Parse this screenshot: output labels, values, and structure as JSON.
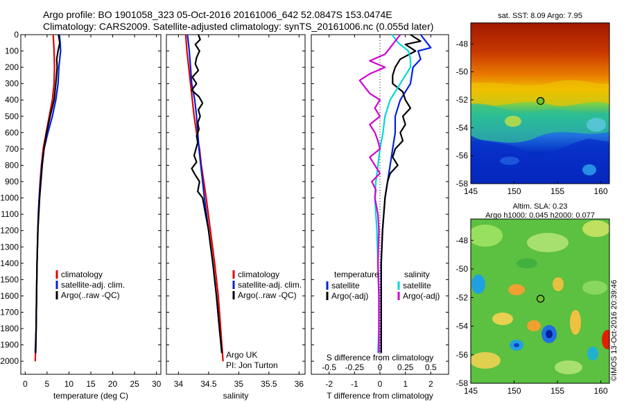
{
  "header": {
    "line1": "Argo profile: BO 1901058_323 05-Oct-2016 20161006_642 52.0847S 153.0474E",
    "line2": "Climatology: CARS2009. Satellite-adjusted climatology: synTS_20161006.nc (0.055d later)"
  },
  "colors": {
    "climatology": "#e00000",
    "satellite": "#0020d8",
    "argo": "#000000",
    "sat_diff_t": "#0020d8",
    "argo_diff_t": "#000000",
    "sat_diff_s": "#00d8d8",
    "argo_diff_s": "#d000d0"
  },
  "chart_data": [
    {
      "type": "line",
      "id": "temperature",
      "xlabel": "temperature (deg C)",
      "xlim": [
        -1,
        31
      ],
      "xticks": [
        0,
        5,
        10,
        15,
        20,
        25,
        30
      ],
      "ylim": [
        0,
        2080
      ],
      "yticks": [
        0,
        100,
        200,
        300,
        400,
        500,
        600,
        700,
        800,
        900,
        1000,
        1100,
        1200,
        1300,
        1400,
        1500,
        1600,
        1700,
        1800,
        1900,
        2000
      ],
      "legend": [
        "climatology",
        "satellite-adj. clim.",
        "Argo(..raw -QC)"
      ],
      "series": [
        {
          "name": "climatology",
          "color": "climatology",
          "depth": [
            0,
            100,
            200,
            300,
            400,
            500,
            600,
            700,
            800,
            900,
            1000,
            1100,
            1200,
            1400,
            1600,
            1800,
            2000
          ],
          "values": [
            6.4,
            6.6,
            6.7,
            6.6,
            6.2,
            5.5,
            4.8,
            4.1,
            3.7,
            3.4,
            3.2,
            3.0,
            2.9,
            2.7,
            2.6,
            2.5,
            2.3
          ]
        },
        {
          "name": "satellite-adj. clim.",
          "color": "satellite",
          "depth": [
            0,
            50,
            100,
            200,
            300,
            400,
            500,
            600,
            700,
            800,
            900,
            1000,
            1100,
            1200,
            1400,
            1600,
            1800,
            1950
          ],
          "values": [
            7.8,
            8.0,
            8.1,
            7.7,
            7.5,
            7.0,
            6.2,
            5.2,
            4.3,
            3.8,
            3.5,
            3.2,
            3.0,
            2.9,
            2.7,
            2.6,
            2.5,
            2.3
          ]
        },
        {
          "name": "Argo(..raw -QC)",
          "color": "argo",
          "depth": [
            0,
            50,
            100,
            150,
            200,
            300,
            400,
            500,
            600,
            700,
            800,
            900,
            1000,
            1100,
            1200,
            1400,
            1600,
            1800,
            1950
          ],
          "values": [
            7.6,
            7.9,
            7.5,
            7.2,
            7.3,
            7.0,
            6.6,
            5.7,
            4.9,
            4.3,
            3.9,
            3.6,
            3.3,
            3.1,
            2.9,
            2.7,
            2.6,
            2.5,
            2.4
          ]
        }
      ]
    },
    {
      "type": "line",
      "id": "salinity",
      "xlabel": "salinity",
      "xlim": [
        33.8,
        36.1
      ],
      "xticks": [
        34,
        34.5,
        35,
        35.5,
        36
      ],
      "xticklabels": [
        "34",
        "34.5",
        "35",
        "35.5",
        "36"
      ],
      "ylim": [
        0,
        2080
      ],
      "legend": [
        "climatology",
        "satellite-adj. clim.",
        "Argo(..raw -QC)"
      ],
      "annotations": [
        "Argo UK",
        "PI: Jon Turton"
      ],
      "series": [
        {
          "name": "climatology",
          "color": "climatology",
          "depth": [
            0,
            100,
            200,
            300,
            400,
            500,
            600,
            700,
            800,
            900,
            1000,
            1200,
            1400,
            1600,
            1800,
            2000
          ],
          "values": [
            34.12,
            34.14,
            34.17,
            34.2,
            34.23,
            34.26,
            34.3,
            34.35,
            34.38,
            34.42,
            34.46,
            34.53,
            34.6,
            34.66,
            34.7,
            34.74
          ]
        },
        {
          "name": "satellite-adj. clim.",
          "color": "satellite",
          "depth": [
            0,
            100,
            200,
            300,
            400,
            500,
            600,
            700,
            800,
            900,
            1000,
            1200,
            1400,
            1600,
            1800,
            1950
          ],
          "values": [
            34.15,
            34.18,
            34.2,
            34.22,
            34.27,
            34.3,
            34.32,
            34.34,
            34.37,
            34.4,
            34.43,
            34.5,
            34.57,
            34.63,
            34.68,
            34.72
          ]
        },
        {
          "name": "Argo(..raw -QC)",
          "color": "argo",
          "depth": [
            0,
            30,
            60,
            100,
            140,
            180,
            220,
            260,
            300,
            340,
            380,
            420,
            460,
            500,
            540,
            580,
            620,
            660,
            700,
            740,
            780,
            820,
            860,
            900,
            960,
            1000,
            1100,
            1200,
            1400,
            1600,
            1800,
            1950
          ],
          "values": [
            34.33,
            34.36,
            34.28,
            34.35,
            34.3,
            34.28,
            34.33,
            34.23,
            34.3,
            34.22,
            34.34,
            34.4,
            34.33,
            34.36,
            34.32,
            34.34,
            34.3,
            34.32,
            34.29,
            34.26,
            34.3,
            34.22,
            34.28,
            34.35,
            34.32,
            34.4,
            34.45,
            34.5,
            34.57,
            34.63,
            34.68,
            34.72
          ]
        }
      ]
    },
    {
      "type": "line",
      "id": "differences",
      "xlabel": "T difference from climatology",
      "xlim": [
        -2.7,
        2.7
      ],
      "xticks": [
        -2,
        -1,
        0,
        1,
        2
      ],
      "xticklabels": [
        "-2",
        "-1",
        "0",
        "1",
        "2"
      ],
      "top_xlabel": "S difference from climatology",
      "top_xticks": [
        -0.5,
        -0.25,
        0,
        0.25,
        0.5
      ],
      "top_xticklabels": [
        "-0.5",
        "-0.25",
        "0",
        "0.25",
        "0.5"
      ],
      "ylim": [
        0,
        2080
      ],
      "legend_groups": [
        {
          "title": "temperature",
          "items": [
            "satellite",
            "Argo(-adj)"
          ]
        },
        {
          "title": "salinity",
          "items": [
            "satellite",
            "Argo(-adj)"
          ]
        }
      ],
      "series": [
        {
          "name": "satellite",
          "variable": "temperature",
          "color": "sat_diff_t",
          "depth": [
            0,
            40,
            80,
            100,
            150,
            200,
            300,
            400,
            500,
            600,
            700,
            800,
            900,
            1000,
            1200,
            1400,
            1600,
            1800,
            1950
          ],
          "values": [
            1.6,
            1.8,
            2.0,
            1.5,
            1.6,
            1.3,
            1.2,
            0.8,
            0.6,
            0.6,
            0.5,
            0.4,
            0.3,
            0.2,
            0.1,
            0.05,
            0.05,
            0.05,
            0.05
          ]
        },
        {
          "name": "Argo(-adj)",
          "variable": "temperature",
          "color": "argo_diff_t",
          "depth": [
            0,
            40,
            60,
            100,
            150,
            200,
            250,
            300,
            350,
            400,
            450,
            500,
            550,
            600,
            650,
            700,
            750,
            800,
            850,
            900,
            1000,
            1100,
            1200,
            1400,
            1600,
            1800,
            1950
          ],
          "values": [
            1.2,
            1.6,
            1.0,
            1.4,
            0.8,
            0.6,
            0.5,
            0.5,
            0.9,
            1.0,
            1.2,
            0.9,
            1.0,
            0.8,
            0.9,
            0.6,
            0.5,
            0.7,
            0.4,
            0.3,
            0.2,
            0.15,
            0.1,
            0.05,
            0.05,
            0.05,
            0.05
          ]
        },
        {
          "name": "satellite",
          "variable": "salinity",
          "color": "sat_diff_s",
          "depth": [
            0,
            50,
            100,
            150,
            200,
            300,
            400,
            500,
            600,
            700,
            800,
            900,
            1000,
            1100,
            1200,
            1400,
            1600,
            1800,
            1950
          ],
          "values": [
            0.12,
            0.18,
            0.28,
            0.3,
            0.3,
            0.2,
            0.1,
            0.05,
            0.03,
            0.0,
            -0.02,
            -0.04,
            -0.05,
            -0.04,
            -0.03,
            -0.02,
            -0.01,
            -0.01,
            -0.02
          ]
        },
        {
          "name": "Argo(-adj)",
          "variable": "salinity",
          "color": "argo_diff_s",
          "depth": [
            0,
            40,
            80,
            120,
            160,
            200,
            240,
            280,
            320,
            360,
            400,
            450,
            500,
            550,
            600,
            650,
            700,
            750,
            800,
            850,
            900,
            950,
            1000,
            1100,
            1200,
            1400,
            1600,
            1800,
            1950
          ],
          "values": [
            0.2,
            0.15,
            0.1,
            0.05,
            -0.1,
            0.05,
            -0.1,
            -0.2,
            -0.15,
            -0.1,
            0.0,
            -0.05,
            0.0,
            -0.1,
            -0.05,
            -0.02,
            0.0,
            -0.1,
            -0.05,
            0.0,
            -0.08,
            -0.04,
            -0.05,
            -0.02,
            -0.01,
            -0.02,
            -0.01,
            -0.01,
            -0.01
          ]
        }
      ]
    },
    {
      "type": "heatmap",
      "id": "sst-map",
      "title": "sat. SST: 8.09 Argo: 7.95",
      "xlim": [
        145,
        161
      ],
      "ylim": [
        -58,
        -46.5
      ],
      "xticks": [
        145,
        150,
        155,
        160
      ],
      "yticks": [
        -58,
        -56,
        -54,
        -52,
        -50,
        -48
      ],
      "marker": {
        "lon": 153.05,
        "lat": -52.08
      }
    },
    {
      "type": "heatmap",
      "id": "sla-map",
      "title_line1": "Altim. SLA: 0.23",
      "title_line2": "Argo h1000: 0.045 h2000: 0.077",
      "xlim": [
        145,
        161
      ],
      "ylim": [
        -58,
        -46.5
      ],
      "xticks": [
        145,
        150,
        155,
        160
      ],
      "yticks": [
        -58,
        -56,
        -54,
        -52,
        -50,
        -48
      ],
      "marker": {
        "lon": 153.05,
        "lat": -52.08
      },
      "side_label": "©IMOS 13-Oct-2016 20:39:46"
    }
  ]
}
